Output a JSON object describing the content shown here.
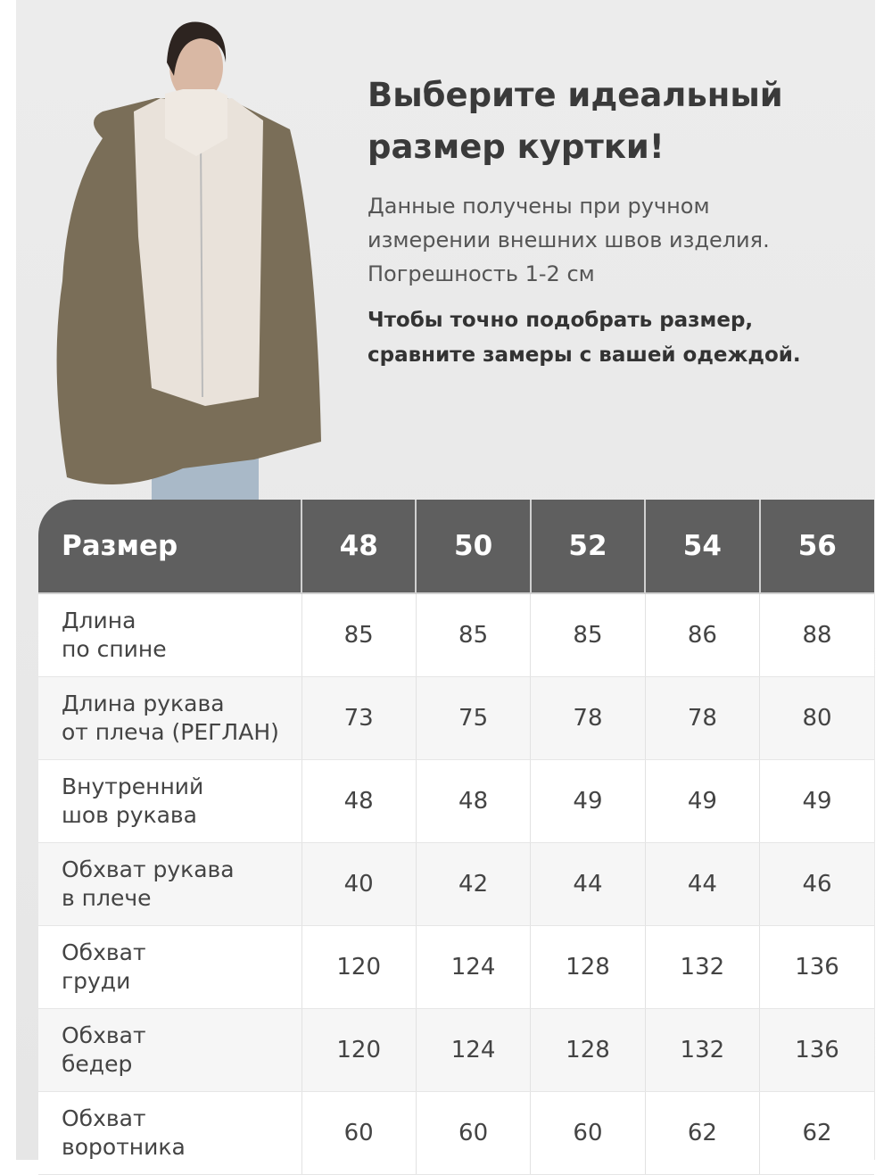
{
  "heading": {
    "title_line1": "Выберите идеальный",
    "title_line2": "размер куртки!",
    "desc_line1": "Данные получены при ручном",
    "desc_line2": "измерении внешних швов изделия.",
    "desc_line3": "Погрешность 1-2 см",
    "note_line1": "Чтобы точно подобрать размер,",
    "note_line2": "сравните замеры с вашей одеждой."
  },
  "colors": {
    "header_bg": "#5f5f5f",
    "jacket": "#7a6e58",
    "vest": "#e9e2da"
  },
  "table": {
    "header": [
      "Размер",
      "48",
      "50",
      "52",
      "54",
      "56"
    ],
    "rows": [
      {
        "label": "Длина\nпо спине",
        "values": [
          "85",
          "85",
          "85",
          "86",
          "88"
        ]
      },
      {
        "label": "Длина рукава\nот плеча (РЕГЛАН)",
        "values": [
          "73",
          "75",
          "78",
          "78",
          "80"
        ]
      },
      {
        "label": "Внутренний\nшов рукава",
        "values": [
          "48",
          "48",
          "49",
          "49",
          "49"
        ]
      },
      {
        "label": "Обхват рукава\nв плече",
        "values": [
          "40",
          "42",
          "44",
          "44",
          "46"
        ]
      },
      {
        "label": "Обхват\nгруди",
        "values": [
          "120",
          "124",
          "128",
          "132",
          "136"
        ]
      },
      {
        "label": "Обхват\nбедер",
        "values": [
          "120",
          "124",
          "128",
          "132",
          "136"
        ]
      },
      {
        "label": "Обхват\nворотника",
        "values": [
          "60",
          "60",
          "60",
          "62",
          "62"
        ]
      }
    ]
  }
}
